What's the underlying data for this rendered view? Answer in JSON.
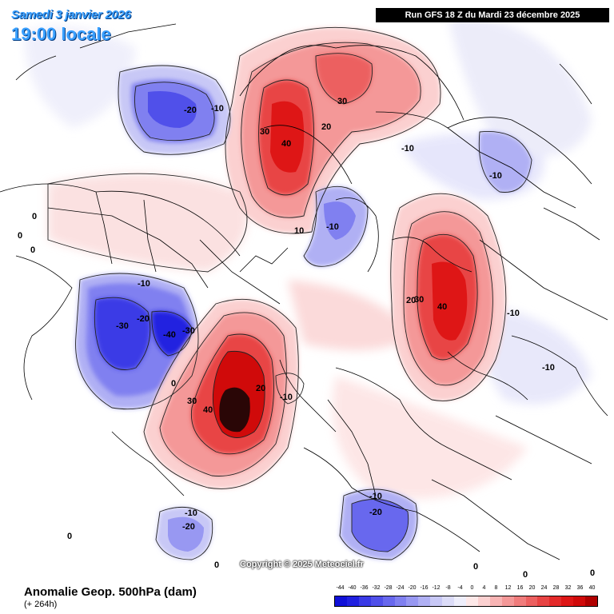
{
  "header": {
    "date": "Samedi 3 janvier 2026",
    "local_time": "19:00 locale",
    "run_info": "Run GFS 18 Z du Mardi 23 décembre 2025"
  },
  "copyright": "Copyright © 2025 Meteociel.fr",
  "footer": {
    "field": "Anomalie Geop. 500hPa (dam)",
    "lead": "(+ 264h)"
  },
  "colorbar": {
    "ticks": [
      "-44",
      "-40",
      "-36",
      "-32",
      "-28",
      "-24",
      "-20",
      "-16",
      "-12",
      "-8",
      "-4",
      "0",
      "4",
      "8",
      "12",
      "16",
      "20",
      "24",
      "28",
      "32",
      "36",
      "40"
    ],
    "colors": [
      "#1010d8",
      "#2020e0",
      "#3a3ae6",
      "#5050ea",
      "#6868ee",
      "#8080f0",
      "#9898f2",
      "#b0b0f4",
      "#c8c8f6",
      "#dcdcf8",
      "#eeeefb",
      "#fde8e8",
      "#fbd0d0",
      "#f8b4b4",
      "#f49898",
      "#f07c7c",
      "#ec6060",
      "#e84444",
      "#e42a2a",
      "#de1616",
      "#d00a0a",
      "#b00000"
    ]
  },
  "map": {
    "contour_labels": [
      {
        "text": "-20",
        "lon": "",
        "id": "nw-low"
      },
      {
        "text": "-10",
        "id": "nw-low-ring"
      },
      {
        "text": "30",
        "id": "siberia-high-30a"
      },
      {
        "text": "40",
        "id": "siberia-high-40"
      },
      {
        "text": "20",
        "id": "siberia-high-20"
      },
      {
        "text": "30",
        "id": "siberia-high-30b"
      },
      {
        "text": "10",
        "id": "siberia-high-10"
      },
      {
        "text": "-10",
        "id": "pacific-low-small"
      },
      {
        "text": "-10",
        "id": "asia-low-small"
      },
      {
        "text": "-10",
        "id": "arctic-low"
      },
      {
        "text": "0",
        "id": "zero-west"
      },
      {
        "text": "-10",
        "id": "europe-low-ring"
      },
      {
        "text": "-30",
        "id": "europe-low-30"
      },
      {
        "text": "-20",
        "id": "europe-low-20"
      },
      {
        "text": "-40",
        "id": "europe-low-40"
      },
      {
        "text": "-30",
        "id": "europe-low-30b"
      },
      {
        "text": "0",
        "id": "zero-europe"
      },
      {
        "text": "20",
        "id": "canada-high-20"
      },
      {
        "text": "30",
        "id": "canada-high-30a"
      },
      {
        "text": "40",
        "id": "canada-high-40"
      },
      {
        "text": "20",
        "id": "na-high-20"
      },
      {
        "text": "30",
        "id": "na-high-30"
      },
      {
        "text": "40",
        "id": "na-high-40"
      },
      {
        "text": "-10",
        "id": "pacific-low-10"
      },
      {
        "text": "-10",
        "id": "east-low-10"
      },
      {
        "text": "-10",
        "id": "se-low-10"
      },
      {
        "text": "-10",
        "id": "atlantic-low-10"
      },
      {
        "text": "-20",
        "id": "atlantic-low-20"
      },
      {
        "text": "-10",
        "id": "sw-low-10"
      },
      {
        "text": "-20",
        "id": "sw-low-20"
      },
      {
        "text": "0",
        "id": "zero-sw"
      },
      {
        "text": "0",
        "id": "zero-south"
      },
      {
        "text": "0",
        "id": "zero-se-a"
      },
      {
        "text": "0",
        "id": "zero-se-b"
      },
      {
        "text": "0",
        "id": "zero-se-c"
      },
      {
        "text": "0",
        "id": "zero-nw-a"
      },
      {
        "text": "0",
        "id": "zero-nw-b"
      }
    ]
  }
}
